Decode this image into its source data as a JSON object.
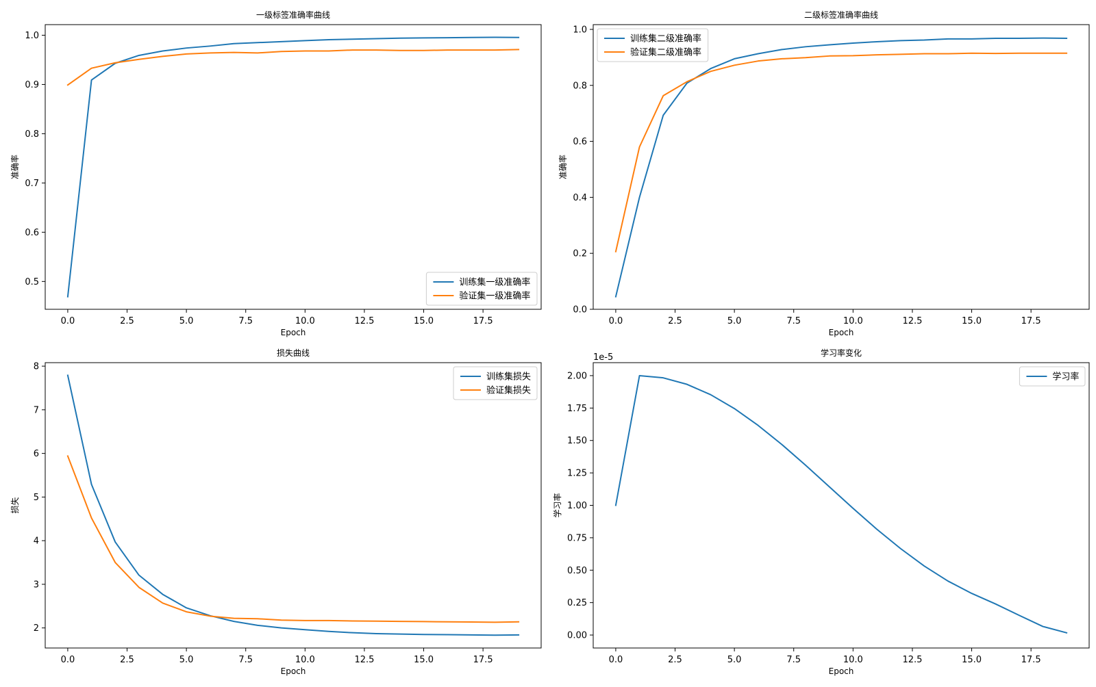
{
  "colors": {
    "series_1": "#1f77b4",
    "series_2": "#ff7f0e",
    "axis": "#000000",
    "background": "#ffffff",
    "legend_border": "#cccccc"
  },
  "chart_data": [
    {
      "id": "level1-acc",
      "type": "line",
      "title": "一级标签准确率曲线",
      "xlabel": "Epoch",
      "ylabel": "准确率",
      "xlim": [
        -0.95,
        19.95
      ],
      "ylim": [
        0.4435,
        1.0215
      ],
      "xticks": [
        0.0,
        2.5,
        5.0,
        7.5,
        10.0,
        12.5,
        15.0,
        17.5
      ],
      "xtick_labels": [
        "0.0",
        "2.5",
        "5.0",
        "7.5",
        "10.0",
        "12.5",
        "15.0",
        "17.5"
      ],
      "yticks": [
        0.5,
        0.6,
        0.7,
        0.8,
        0.9,
        1.0
      ],
      "ytick_labels": [
        "0.5",
        "0.6",
        "0.7",
        "0.8",
        "0.9",
        "1.0"
      ],
      "legend_position": "lower right",
      "grid": false,
      "x": [
        0,
        1,
        2,
        3,
        4,
        5,
        6,
        7,
        8,
        9,
        10,
        11,
        12,
        13,
        14,
        15,
        16,
        17,
        18,
        19
      ],
      "series": [
        {
          "name": "训练集一级准确率",
          "color": "#1f77b4",
          "values": [
            0.469,
            0.909,
            0.943,
            0.959,
            0.968,
            0.974,
            0.978,
            0.983,
            0.985,
            0.987,
            0.989,
            0.991,
            0.992,
            0.993,
            0.994,
            0.9945,
            0.995,
            0.9955,
            0.9958,
            0.9955
          ]
        },
        {
          "name": "验证集一级准确率",
          "color": "#ff7f0e",
          "values": [
            0.899,
            0.933,
            0.944,
            0.951,
            0.957,
            0.962,
            0.964,
            0.965,
            0.964,
            0.967,
            0.968,
            0.968,
            0.97,
            0.97,
            0.969,
            0.969,
            0.97,
            0.97,
            0.97,
            0.971
          ]
        }
      ]
    },
    {
      "id": "level2-acc",
      "type": "line",
      "title": "二级标签准确率曲线",
      "xlabel": "Epoch",
      "ylabel": "准确率",
      "xlim": [
        -0.95,
        19.95
      ],
      "ylim": [
        0.0,
        1.017
      ],
      "xticks": [
        0.0,
        2.5,
        5.0,
        7.5,
        10.0,
        12.5,
        15.0,
        17.5
      ],
      "xtick_labels": [
        "0.0",
        "2.5",
        "5.0",
        "7.5",
        "10.0",
        "12.5",
        "15.0",
        "17.5"
      ],
      "yticks": [
        0.0,
        0.2,
        0.4,
        0.6,
        0.8,
        1.0
      ],
      "ytick_labels": [
        "0.0",
        "0.2",
        "0.4",
        "0.6",
        "0.8",
        "1.0"
      ],
      "legend_position": "upper left",
      "grid": false,
      "x": [
        0,
        1,
        2,
        3,
        4,
        5,
        6,
        7,
        8,
        9,
        10,
        11,
        12,
        13,
        14,
        15,
        16,
        17,
        18,
        19
      ],
      "series": [
        {
          "name": "训练集二级准确率",
          "color": "#1f77b4",
          "values": [
            0.045,
            0.4,
            0.693,
            0.808,
            0.86,
            0.895,
            0.913,
            0.928,
            0.938,
            0.945,
            0.951,
            0.956,
            0.96,
            0.962,
            0.966,
            0.966,
            0.968,
            0.968,
            0.969,
            0.968
          ]
        },
        {
          "name": "验证集二级准确率",
          "color": "#ff7f0e",
          "values": [
            0.206,
            0.58,
            0.763,
            0.813,
            0.85,
            0.872,
            0.887,
            0.895,
            0.899,
            0.905,
            0.906,
            0.909,
            0.911,
            0.913,
            0.913,
            0.915,
            0.914,
            0.915,
            0.915,
            0.915
          ]
        }
      ]
    },
    {
      "id": "loss",
      "type": "line",
      "title": "损失曲线",
      "xlabel": "Epoch",
      "ylabel": "损失",
      "xlim": [
        -0.95,
        19.95
      ],
      "ylim": [
        1.54,
        8.08
      ],
      "xticks": [
        0.0,
        2.5,
        5.0,
        7.5,
        10.0,
        12.5,
        15.0,
        17.5
      ],
      "xtick_labels": [
        "0.0",
        "2.5",
        "5.0",
        "7.5",
        "10.0",
        "12.5",
        "15.0",
        "17.5"
      ],
      "yticks": [
        2,
        3,
        4,
        5,
        6,
        7,
        8
      ],
      "ytick_labels": [
        "2",
        "3",
        "4",
        "5",
        "6",
        "7",
        "8"
      ],
      "legend_position": "upper right",
      "grid": false,
      "x": [
        0,
        1,
        2,
        3,
        4,
        5,
        6,
        7,
        8,
        9,
        10,
        11,
        12,
        13,
        14,
        15,
        16,
        17,
        18,
        19
      ],
      "series": [
        {
          "name": "训练集损失",
          "color": "#1f77b4",
          "values": [
            7.79,
            5.29,
            3.97,
            3.21,
            2.77,
            2.46,
            2.28,
            2.15,
            2.06,
            2.0,
            1.96,
            1.92,
            1.89,
            1.87,
            1.86,
            1.85,
            1.845,
            1.84,
            1.835,
            1.84
          ]
        },
        {
          "name": "验证集损失",
          "color": "#ff7f0e",
          "values": [
            5.94,
            4.52,
            3.5,
            2.93,
            2.57,
            2.37,
            2.27,
            2.22,
            2.21,
            2.18,
            2.17,
            2.17,
            2.16,
            2.155,
            2.15,
            2.145,
            2.14,
            2.135,
            2.13,
            2.14
          ]
        }
      ]
    },
    {
      "id": "lr",
      "type": "line",
      "title": "学习率变化",
      "xlabel": "Epoch",
      "ylabel": "学习率",
      "offset_text": "1e-5",
      "xlim": [
        -0.95,
        19.95
      ],
      "ylim": [
        -0.1,
        2.1
      ],
      "xticks": [
        0.0,
        2.5,
        5.0,
        7.5,
        10.0,
        12.5,
        15.0,
        17.5
      ],
      "xtick_labels": [
        "0.0",
        "2.5",
        "5.0",
        "7.5",
        "10.0",
        "12.5",
        "15.0",
        "17.5"
      ],
      "yticks": [
        0.0,
        0.25,
        0.5,
        0.75,
        1.0,
        1.25,
        1.5,
        1.75,
        2.0
      ],
      "ytick_labels": [
        "0.00",
        "0.25",
        "0.50",
        "0.75",
        "1.00",
        "1.25",
        "1.50",
        "1.75",
        "2.00"
      ],
      "legend_position": "upper right",
      "grid": false,
      "x": [
        0,
        1,
        2,
        3,
        4,
        5,
        6,
        7,
        8,
        9,
        10,
        11,
        12,
        13,
        14,
        15,
        16,
        17,
        18,
        19
      ],
      "series": [
        {
          "name": "学习率",
          "color": "#1f77b4",
          "values": [
            1.0,
            2.0,
            1.983,
            1.933,
            1.853,
            1.746,
            1.616,
            1.469,
            1.309,
            1.143,
            0.977,
            0.816,
            0.667,
            0.532,
            0.416,
            0.321,
            0.24,
            0.152,
            0.066,
            0.017
          ]
        }
      ]
    }
  ]
}
